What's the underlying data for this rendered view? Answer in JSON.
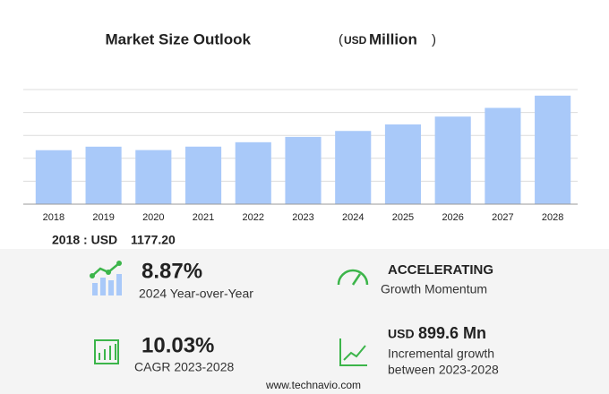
{
  "chart_data": {
    "type": "bar",
    "title": "Market Size Outlook",
    "unit": {
      "open": "(",
      "currency": "USD",
      "name": "Million",
      "close": ")"
    },
    "categories": [
      "2018",
      "2019",
      "2020",
      "2021",
      "2022",
      "2023",
      "2024",
      "2025",
      "2026",
      "2027",
      "2028"
    ],
    "values": [
      1177.2,
      1254,
      1180,
      1255,
      1351,
      1467,
      1597,
      1740,
      1910,
      2100,
      2367
    ],
    "color": "#a9c9f9",
    "ylim": [
      0,
      2500
    ],
    "grid": true,
    "base": {
      "label": "2018 : USD",
      "value": "1177.20"
    },
    "highlights": [
      {
        "value": "8.87%",
        "label": "2024 Year-over-Year"
      },
      {
        "value": "ACCELERATING",
        "label": "Growth Momentum"
      },
      {
        "value": "10.03%",
        "label": "CAGR 2023-2028"
      },
      {
        "currency": "USD",
        "value": "899.6 Mn",
        "label": "Incremental growth",
        "label2": "between 2023-2028"
      }
    ],
    "footer": "www.technavio.com"
  }
}
